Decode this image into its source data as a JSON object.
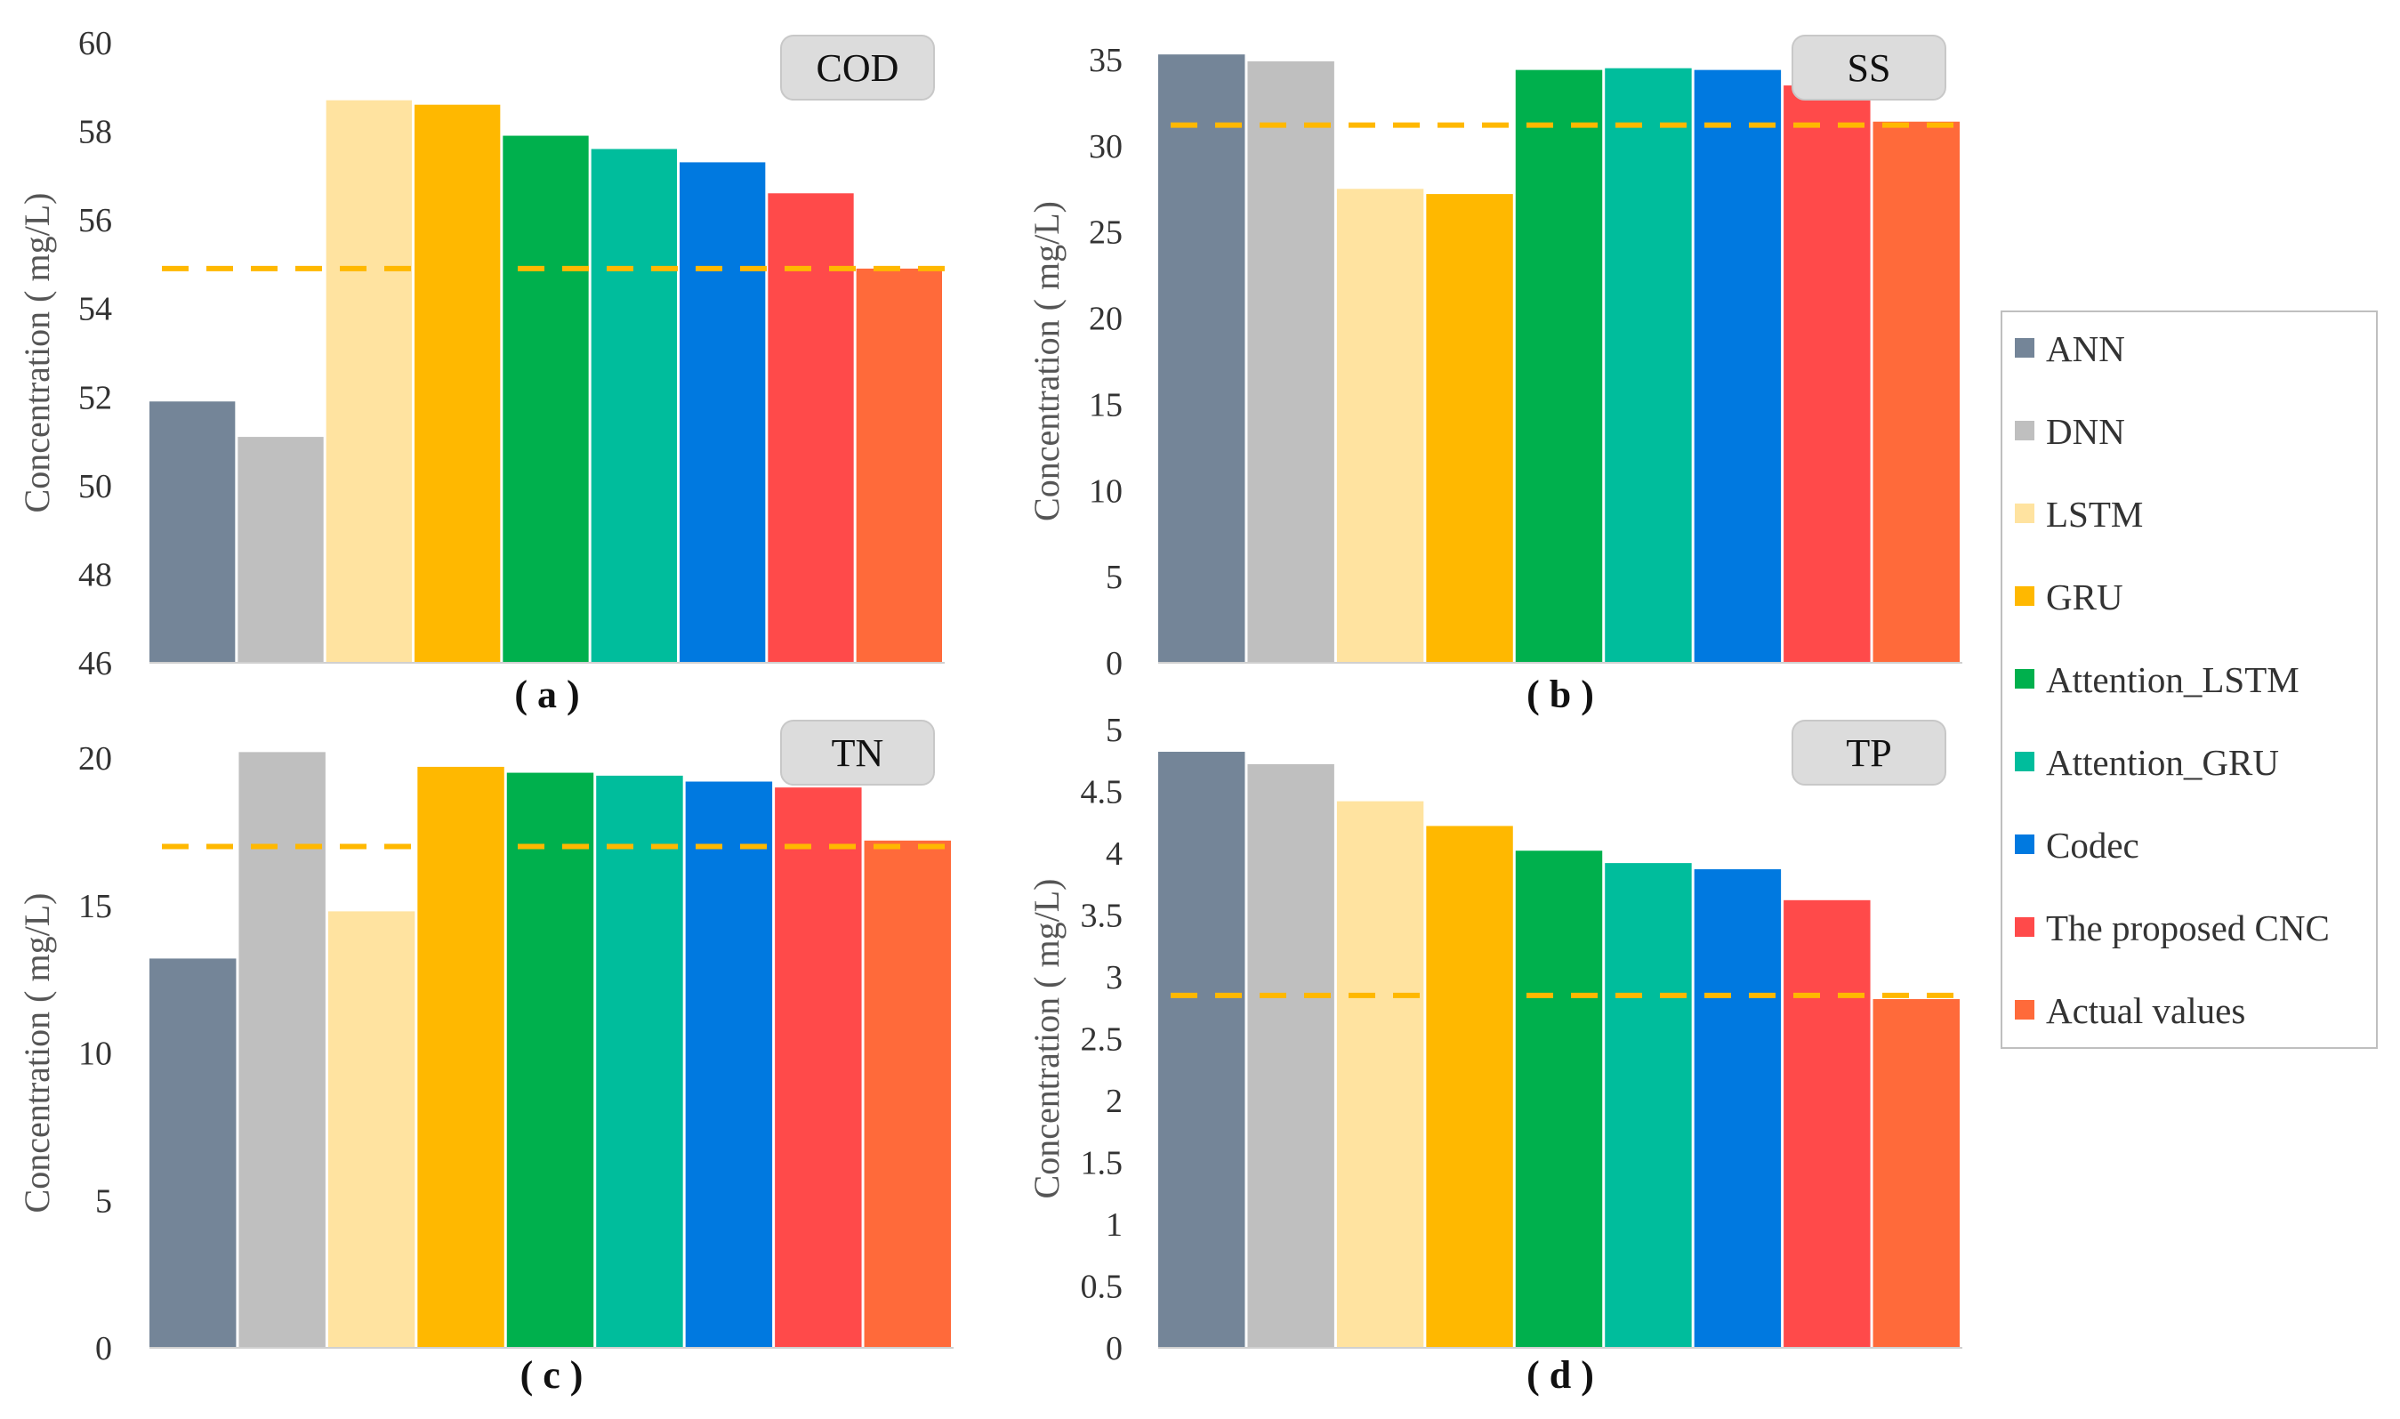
{
  "legend": [
    {
      "name": "ANN",
      "color": "#748598"
    },
    {
      "name": "DNN",
      "color": "#bfbfbf"
    },
    {
      "name": "LSTM",
      "color": "#ffe3a0"
    },
    {
      "name": "GRU",
      "color": "#ffb800"
    },
    {
      "name": "Attention_LSTM",
      "color": "#00b04d"
    },
    {
      "name": "Attention_GRU",
      "color": "#00bd9c"
    },
    {
      "name": "Codec",
      "color": "#0079e0"
    },
    {
      "name": "The proposed CNC",
      "color": "#ff4a4a"
    },
    {
      "name": "Actual values",
      "color": "#ff6a3a"
    }
  ],
  "reference_line_color": "#ffb800",
  "chart_data": [
    {
      "type": "bar",
      "title": "COD",
      "panel_label": "( a )",
      "ylabel": "Concentration ( mg/L)",
      "ylim": [
        46,
        60
      ],
      "yticks": [
        "46",
        "48",
        "50",
        "52",
        "54",
        "56",
        "58",
        "60"
      ],
      "ytick_values": [
        46,
        48,
        50,
        52,
        54,
        56,
        58,
        60
      ],
      "categories": [
        "ANN",
        "DNN",
        "LSTM",
        "GRU",
        "Attention_LSTM",
        "Attention_GRU",
        "Codec",
        "The proposed CNC",
        "Actual values"
      ],
      "values": [
        51.9,
        51.1,
        58.7,
        58.6,
        57.9,
        57.6,
        57.3,
        56.6,
        54.9
      ],
      "reference_line": 54.9
    },
    {
      "type": "bar",
      "title": "SS",
      "panel_label": "( b )",
      "ylabel": "Concentration ( mg/L)",
      "ylim": [
        0,
        35
      ],
      "yticks": [
        "0",
        "5",
        "10",
        "15",
        "20",
        "25",
        "30",
        "35"
      ],
      "ytick_values": [
        0,
        5,
        10,
        15,
        20,
        25,
        30,
        35
      ],
      "categories": [
        "ANN",
        "DNN",
        "LSTM",
        "GRU",
        "Attention_LSTM",
        "Attention_GRU",
        "Codec",
        "The proposed CNC",
        "Actual values"
      ],
      "values": [
        35.3,
        34.9,
        27.5,
        27.2,
        34.4,
        34.5,
        34.4,
        33.5,
        31.4
      ],
      "reference_line": 31.2
    },
    {
      "type": "bar",
      "title": "TN",
      "panel_label": "( c )",
      "ylabel": "Concentration ( mg/L)",
      "ylim": [
        0,
        20
      ],
      "yticks": [
        "0",
        "5",
        "10",
        "15",
        "20"
      ],
      "ytick_values": [
        0,
        5,
        10,
        15,
        20
      ],
      "categories": [
        "ANN",
        "DNN",
        "LSTM",
        "GRU",
        "Attention_LSTM",
        "Attention_GRU",
        "Codec",
        "The proposed CNC",
        "Actual values"
      ],
      "values": [
        13.2,
        20.2,
        14.8,
        19.7,
        19.5,
        19.4,
        19.2,
        19.0,
        17.2
      ],
      "reference_line": 17.0
    },
    {
      "type": "bar",
      "title": "TP",
      "panel_label": "( d )",
      "ylabel": "Concentration ( mg/L)",
      "ylim": [
        0,
        5
      ],
      "yticks": [
        "0",
        "0.5",
        "1",
        "1.5",
        "2",
        "2.5",
        "3",
        "3.5",
        "4",
        "4.5",
        "5"
      ],
      "ytick_values": [
        0,
        0.5,
        1,
        1.5,
        2,
        2.5,
        3,
        3.5,
        4,
        4.5,
        5
      ],
      "categories": [
        "ANN",
        "DNN",
        "LSTM",
        "GRU",
        "Attention_LSTM",
        "Attention_GRU",
        "Codec",
        "The proposed CNC",
        "Actual values"
      ],
      "values": [
        4.82,
        4.72,
        4.42,
        4.22,
        4.02,
        3.92,
        3.87,
        3.62,
        2.82
      ],
      "reference_line": 2.85
    }
  ]
}
